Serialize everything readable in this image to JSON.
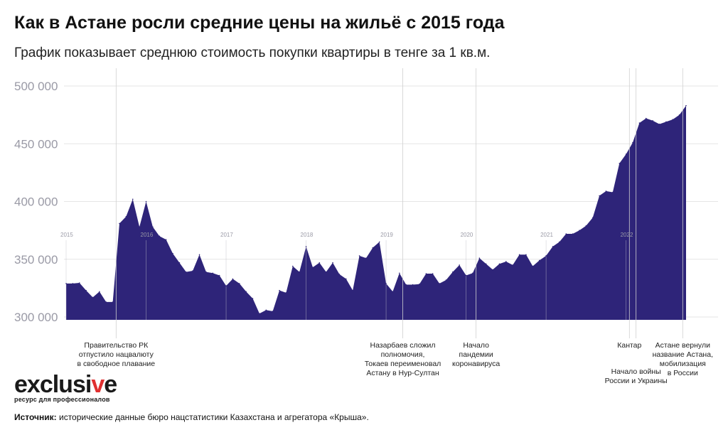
{
  "title": "Как в Астане росли средние цены на жильё с 2015 года",
  "subtitle": "График показывает среднюю стоимость покупки квартиры в тенге за 1 кв.м.",
  "logo": {
    "part1": "exclusi",
    "part2": "v",
    "part3": "e",
    "tagline": "ресурс для профессионалов"
  },
  "source": {
    "label": "Источник:",
    "text": " исторические данные бюро нацстатистики Казахстана и агрегатора «Крыша»."
  },
  "colors": {
    "fill": "#2e2479",
    "grid": "#e6e6e6",
    "marker": "#d0d0d0",
    "tick": "#9a9aa6",
    "logo_accent": "#e03030"
  },
  "chart_data": {
    "type": "area",
    "ylim": [
      297000,
      505000
    ],
    "yticks": [
      300000,
      350000,
      400000,
      450000,
      500000
    ],
    "ytick_labels": [
      "300 000",
      "350 000",
      "400 000",
      "450 000",
      "500 000"
    ],
    "year_ticks": [
      {
        "label": "2015",
        "t": 0
      },
      {
        "label": "2016",
        "t": 12
      },
      {
        "label": "2017",
        "t": 24
      },
      {
        "label": "2018",
        "t": 36
      },
      {
        "label": "2019",
        "t": 48
      },
      {
        "label": "2020",
        "t": 60
      },
      {
        "label": "2021",
        "t": 72
      },
      {
        "label": "2022",
        "t": 84
      }
    ],
    "series": [
      {
        "values": [
          329000,
          329000,
          329500,
          323000,
          317000,
          322000,
          313000,
          313000,
          381000,
          387000,
          402000,
          378000,
          400000,
          378000,
          370000,
          367000,
          355000,
          347000,
          339000,
          340000,
          354000,
          339000,
          338000,
          336000,
          327000,
          333000,
          329000,
          322000,
          316000,
          303000,
          306000,
          305000,
          323000,
          321000,
          344000,
          339000,
          361000,
          343000,
          347000,
          339000,
          347000,
          337000,
          333000,
          323000,
          353000,
          351000,
          360000,
          365000,
          329000,
          322000,
          338000,
          328000,
          328000,
          328500,
          337500,
          337500,
          329000,
          332000,
          339000,
          345000,
          336000,
          338000,
          351000,
          346000,
          341000,
          346000,
          348000,
          345000,
          354000,
          354000,
          344000,
          349000,
          353000,
          361000,
          365000,
          372000,
          372000,
          375000,
          379000,
          386000,
          405000,
          409000,
          408000,
          433000,
          441000,
          451000,
          468000,
          472000,
          470000,
          467000,
          469000,
          471000,
          475000,
          483000
        ]
      }
    ],
    "annotations": [
      {
        "t": 7.5,
        "lines": [
          "Правительство РК",
          "отпустило нацвалюту",
          "в свободное плавание"
        ]
      },
      {
        "t": 50.5,
        "lines": [
          "Назарбаев сложил",
          "полномочия,",
          "Токаев переименовал",
          "Астану в Нур-Султан"
        ]
      },
      {
        "t": 61.5,
        "lines": [
          "Начало",
          "пандемии",
          "коронавируса"
        ]
      },
      {
        "t": 84.5,
        "lines": [
          "Кантар"
        ]
      },
      {
        "t": 85.5,
        "lines": [
          "Начало войны",
          "России и Украины"
        ]
      },
      {
        "t": 92.5,
        "lines": [
          "Астане вернули",
          "название Астана,",
          "мобилизация",
          "в России"
        ]
      }
    ]
  }
}
